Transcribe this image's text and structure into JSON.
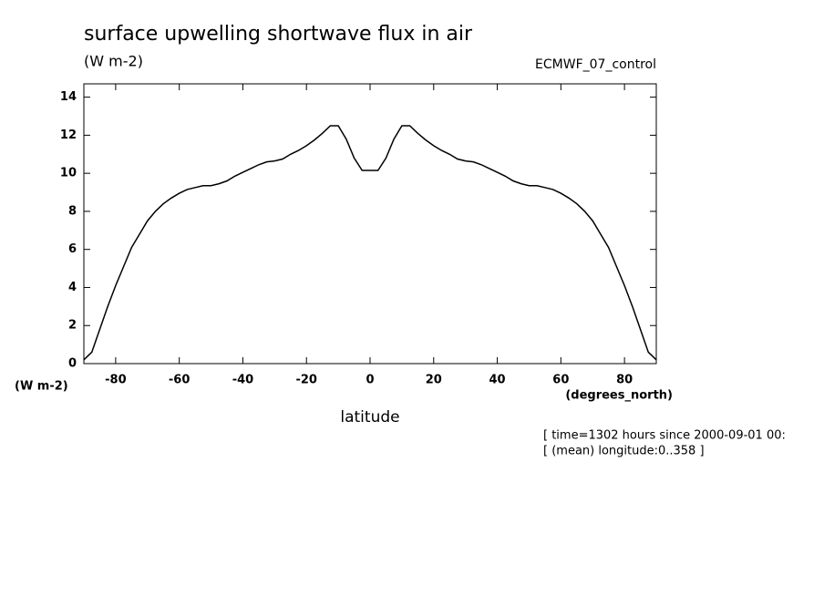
{
  "chart_data": {
    "type": "line",
    "title": "surface upwelling shortwave flux in air",
    "units": "(W m-2)",
    "dataset": "ECMWF_07_control",
    "y_axis_units": "(W m-2)",
    "x_axis_units": "(degrees_north)",
    "xlabel": "latitude",
    "footnotes": [
      "[ time=1302 hours since 2000-09-01 00:",
      "[ (mean) longitude:0..358 ]"
    ],
    "x": [
      -90,
      -87.5,
      -85,
      -82.5,
      -80,
      -77.5,
      -75,
      -72.5,
      -70,
      -67.5,
      -65,
      -62.5,
      -60,
      -57.5,
      -55,
      -52.5,
      -50,
      -47.5,
      -45,
      -42.5,
      -40,
      -37.5,
      -35,
      -32.5,
      -30,
      -27.5,
      -25,
      -22.5,
      -20,
      -17.5,
      -15,
      -12.5,
      -10,
      -7.5,
      -5,
      -2.5,
      0,
      2.5,
      5,
      7.5,
      10,
      12.5,
      15,
      17.5,
      20,
      22.5,
      25,
      27.5,
      30,
      32.5,
      35,
      37.5,
      40,
      42.5,
      45,
      47.5,
      50,
      52.5,
      55,
      57.5,
      60,
      62.5,
      65,
      67.5,
      70,
      72.5,
      75,
      77.5,
      80,
      82.5,
      85,
      87.5,
      90
    ],
    "series": [
      {
        "name": "surface upwelling shortwave flux in air",
        "color": "#000000",
        "values": [
          0.2,
          0.6,
          1.8,
          3.0,
          4.1,
          5.1,
          6.1,
          6.8,
          7.5,
          8.0,
          8.4,
          8.7,
          8.95,
          9.15,
          9.25,
          9.35,
          9.35,
          9.45,
          9.6,
          9.85,
          10.05,
          10.25,
          10.45,
          10.6,
          10.65,
          10.75,
          11.0,
          11.2,
          11.45,
          11.75,
          12.1,
          12.5,
          12.5,
          11.8,
          10.8,
          10.15,
          10.15,
          10.15,
          10.8,
          11.8,
          12.5,
          12.5,
          12.1,
          11.75,
          11.45,
          11.2,
          11.0,
          10.75,
          10.65,
          10.6,
          10.45,
          10.25,
          10.05,
          9.85,
          9.6,
          9.45,
          9.35,
          9.35,
          9.25,
          9.15,
          8.95,
          8.7,
          8.4,
          8.0,
          7.5,
          6.8,
          6.1,
          5.1,
          4.1,
          3.0,
          1.8,
          0.6,
          0.2
        ]
      }
    ],
    "xlim": [
      -90,
      90
    ],
    "ylim": [
      0,
      14.7
    ],
    "xticks": [
      -80,
      -60,
      -40,
      -20,
      0,
      20,
      40,
      60,
      80
    ],
    "yticks": [
      0,
      2,
      4,
      6,
      8,
      10,
      12,
      14
    ]
  }
}
